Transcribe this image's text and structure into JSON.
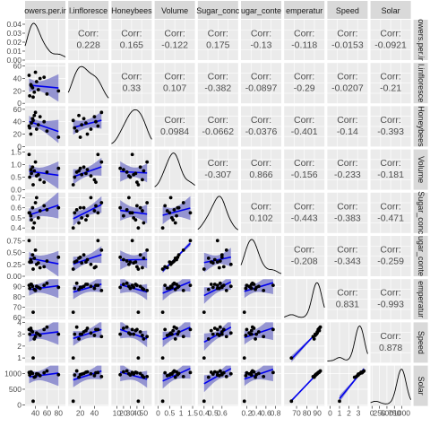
{
  "chart_data": {
    "type": "scatter",
    "title": "",
    "variables": [
      "Flowers.per.inflorescence",
      "Total.inflorescences",
      "Honeybees",
      "Volume",
      "Sugar_concentration",
      "Sugar_content",
      "Temperature",
      "Speed",
      "Solar"
    ],
    "strip_labels": [
      "owers.per.ir",
      "l.infloresce",
      "Honeybees",
      "Volume",
      "Sugar_conc",
      "ugar_conte",
      "emperatur",
      "Speed",
      "Solar"
    ],
    "corr_label": "Corr:",
    "correlations": [
      {
        "row": 0,
        "col": 1,
        "value": "0.228"
      },
      {
        "row": 0,
        "col": 2,
        "value": "0.165"
      },
      {
        "row": 0,
        "col": 3,
        "value": "-0.122"
      },
      {
        "row": 0,
        "col": 4,
        "value": "0.175"
      },
      {
        "row": 0,
        "col": 5,
        "value": "-0.13"
      },
      {
        "row": 0,
        "col": 6,
        "value": "-0.118"
      },
      {
        "row": 0,
        "col": 7,
        "value": "-0.0153"
      },
      {
        "row": 0,
        "col": 8,
        "value": "-0.0921"
      },
      {
        "row": 1,
        "col": 2,
        "value": "0.33"
      },
      {
        "row": 1,
        "col": 3,
        "value": "0.107"
      },
      {
        "row": 1,
        "col": 4,
        "value": "-0.382"
      },
      {
        "row": 1,
        "col": 5,
        "value": "-0.0897"
      },
      {
        "row": 1,
        "col": 6,
        "value": "-0.29"
      },
      {
        "row": 1,
        "col": 7,
        "value": "-0.0207"
      },
      {
        "row": 1,
        "col": 8,
        "value": "-0.21"
      },
      {
        "row": 2,
        "col": 3,
        "value": "0.0984"
      },
      {
        "row": 2,
        "col": 4,
        "value": "-0.0662"
      },
      {
        "row": 2,
        "col": 5,
        "value": "-0.0376"
      },
      {
        "row": 2,
        "col": 6,
        "value": "-0.401"
      },
      {
        "row": 2,
        "col": 7,
        "value": "-0.14"
      },
      {
        "row": 2,
        "col": 8,
        "value": "-0.393"
      },
      {
        "row": 3,
        "col": 4,
        "value": "-0.307"
      },
      {
        "row": 3,
        "col": 5,
        "value": "0.866"
      },
      {
        "row": 3,
        "col": 6,
        "value": "-0.156"
      },
      {
        "row": 3,
        "col": 7,
        "value": "-0.233"
      },
      {
        "row": 3,
        "col": 8,
        "value": "-0.181"
      },
      {
        "row": 4,
        "col": 5,
        "value": "0.102"
      },
      {
        "row": 4,
        "col": 6,
        "value": "-0.443"
      },
      {
        "row": 4,
        "col": 7,
        "value": "-0.383"
      },
      {
        "row": 4,
        "col": 8,
        "value": "-0.471"
      },
      {
        "row": 5,
        "col": 6,
        "value": "-0.208"
      },
      {
        "row": 5,
        "col": 7,
        "value": "-0.343"
      },
      {
        "row": 5,
        "col": 8,
        "value": "-0.259"
      },
      {
        "row": 6,
        "col": 7,
        "value": "0.831"
      },
      {
        "row": 6,
        "col": 8,
        "value": "-0.993"
      },
      {
        "row": 7,
        "col": 8,
        "value": "0.878"
      }
    ],
    "y_axes": [
      {
        "row": 0,
        "range": [
          0,
          0.045
        ],
        "ticks": [
          "0.00",
          "0.01",
          "0.02",
          "0.03",
          "0.04"
        ],
        "tick_values": [
          0,
          0.01,
          0.02,
          0.03,
          0.04
        ]
      },
      {
        "row": 1,
        "range": [
          0,
          65
        ],
        "ticks": [
          "0",
          "20",
          "40",
          "60"
        ],
        "tick_values": [
          0,
          20,
          40,
          60
        ]
      },
      {
        "row": 2,
        "range": [
          0,
          65
        ],
        "ticks": [
          "0",
          "20",
          "40",
          "60"
        ],
        "tick_values": [
          0,
          20,
          40,
          60
        ]
      },
      {
        "row": 3,
        "range": [
          0,
          1.6
        ],
        "ticks": [
          "0.0",
          "0.5",
          "1.0",
          "1.5"
        ],
        "tick_values": [
          0,
          0.5,
          1.0,
          1.5
        ]
      },
      {
        "row": 4,
        "range": [
          0.35,
          0.75
        ],
        "ticks": [
          "0.4",
          "0.5",
          "0.6",
          "0.7"
        ],
        "tick_values": [
          0.4,
          0.5,
          0.6,
          0.7
        ]
      },
      {
        "row": 5,
        "range": [
          0,
          0.85
        ],
        "ticks": [
          "0.00",
          "0.25",
          "0.50",
          "0.75"
        ],
        "tick_values": [
          0,
          0.25,
          0.5,
          0.75
        ]
      },
      {
        "row": 6,
        "range": [
          58,
          97
        ],
        "ticks": [
          "60",
          "70",
          "80",
          "90"
        ],
        "tick_values": [
          60,
          70,
          80,
          90
        ]
      },
      {
        "row": 7,
        "range": [
          0.6,
          4.0
        ],
        "ticks": [
          "1",
          "2",
          "3",
          "4"
        ],
        "tick_values": [
          1,
          2,
          3,
          4
        ]
      },
      {
        "row": 8,
        "range": [
          -30,
          1250
        ],
        "ticks": [
          "0",
          "500",
          "1000"
        ],
        "tick_values": [
          0,
          500,
          1000
        ]
      }
    ],
    "x_axes": [
      {
        "col": 0,
        "range": [
          22,
          92
        ],
        "ticks": [
          "40",
          "60",
          "80"
        ],
        "tick_values": [
          40,
          60,
          80
        ]
      },
      {
        "col": 1,
        "range": [
          3,
          60
        ],
        "ticks": [
          "20",
          "40"
        ],
        "tick_values": [
          20,
          40
        ]
      },
      {
        "col": 2,
        "range": [
          2,
          62
        ],
        "ticks": [
          "10",
          "20",
          "30",
          "40",
          "50"
        ],
        "tick_values": [
          10,
          20,
          30,
          40,
          50
        ]
      },
      {
        "col": 3,
        "range": [
          -0.15,
          1.6
        ],
        "ticks": [
          "0",
          "0.5",
          "1",
          "1.5"
        ],
        "tick_values": [
          0,
          0.5,
          1.0,
          1.5
        ]
      },
      {
        "col": 4,
        "range": [
          0.33,
          0.78
        ],
        "ticks": [
          "0.4",
          "0.5",
          "0.6"
        ],
        "tick_values": [
          0.4,
          0.5,
          0.6
        ]
      },
      {
        "col": 5,
        "range": [
          0.08,
          0.92
        ],
        "ticks": [
          "0.2",
          "0.4",
          "0.6",
          "0.8"
        ],
        "tick_values": [
          0.2,
          0.4,
          0.6,
          0.8
        ]
      },
      {
        "col": 6,
        "range": [
          58,
          97
        ],
        "ticks": [
          "70",
          "80",
          "90"
        ],
        "tick_values": [
          70,
          80,
          90
        ]
      },
      {
        "col": 7,
        "range": [
          -0.3,
          4.0
        ],
        "ticks": [
          "0",
          "1",
          "2",
          "3"
        ],
        "tick_values": [
          0,
          1,
          2,
          3
        ]
      },
      {
        "col": 8,
        "range": [
          -50,
          1300
        ],
        "ticks": [
          "0",
          "250",
          "500",
          "750",
          "1000"
        ],
        "tick_values": [
          0,
          250,
          500,
          750,
          1000
        ]
      }
    ],
    "observations": {
      "Flowers.per.inflorescence": [
        30,
        35,
        32,
        40,
        45,
        55,
        60,
        38,
        42,
        33,
        48,
        80,
        36,
        29
      ],
      "Total.inflorescences": [
        12,
        25,
        30,
        50,
        22,
        42,
        15,
        18,
        35,
        28,
        40,
        20,
        10,
        45
      ],
      "Honeybees": [
        30,
        45,
        20,
        55,
        35,
        40,
        25,
        50,
        28,
        38,
        48,
        15,
        42,
        33
      ],
      "Volume": [
        0.5,
        0.9,
        0.8,
        1.1,
        0.6,
        0.3,
        0.7,
        0.75,
        0.55,
        0.65,
        0.4,
        0.85,
        0.2,
        1.4
      ],
      "Sugar_concentration": [
        0.55,
        0.6,
        0.52,
        0.65,
        0.5,
        0.62,
        0.58,
        0.45,
        0.7,
        0.48,
        0.57,
        0.6,
        0.4,
        0.55
      ],
      "Sugar_content": [
        0.3,
        0.45,
        0.35,
        0.55,
        0.28,
        0.2,
        0.32,
        0.38,
        0.25,
        0.3,
        0.18,
        0.4,
        0.15,
        0.75
      ],
      "Temperature": [
        88,
        90,
        92,
        86,
        89,
        91,
        93,
        87,
        90,
        92,
        88,
        89,
        65,
        91
      ],
      "Speed": [
        3.0,
        3.2,
        3.5,
        2.8,
        3.0,
        3.4,
        3.6,
        2.6,
        3.1,
        3.3,
        2.9,
        3.0,
        1.0,
        3.4
      ],
      "Solar": [
        950,
        1000,
        1050,
        900,
        980,
        1020,
        1080,
        880,
        990,
        1040,
        930,
        960,
        120,
        1030
      ]
    }
  }
}
